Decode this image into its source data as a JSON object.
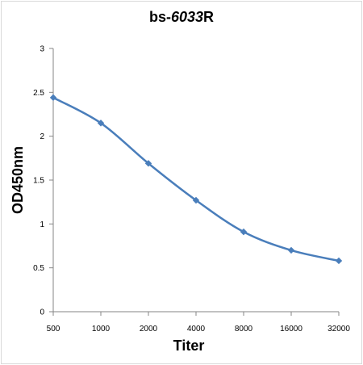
{
  "chart_data": {
    "type": "line",
    "title_prefix": "bs-",
    "title_italic": "6033",
    "title_suffix": "R",
    "xlabel": "Titer",
    "ylabel": "OD450nm",
    "categories": [
      "500",
      "1000",
      "2000",
      "4000",
      "8000",
      "16000",
      "32000"
    ],
    "series": [
      {
        "values": [
          2.44,
          2.15,
          1.69,
          1.27,
          0.91,
          0.7,
          0.58
        ],
        "color": "#4a7ebb"
      }
    ],
    "y_ticks": [
      "0",
      "0.5",
      "1",
      "1.5",
      "2",
      "2.5",
      "3"
    ],
    "ylim": [
      0,
      3
    ],
    "grid": false,
    "marker": "diamond"
  }
}
